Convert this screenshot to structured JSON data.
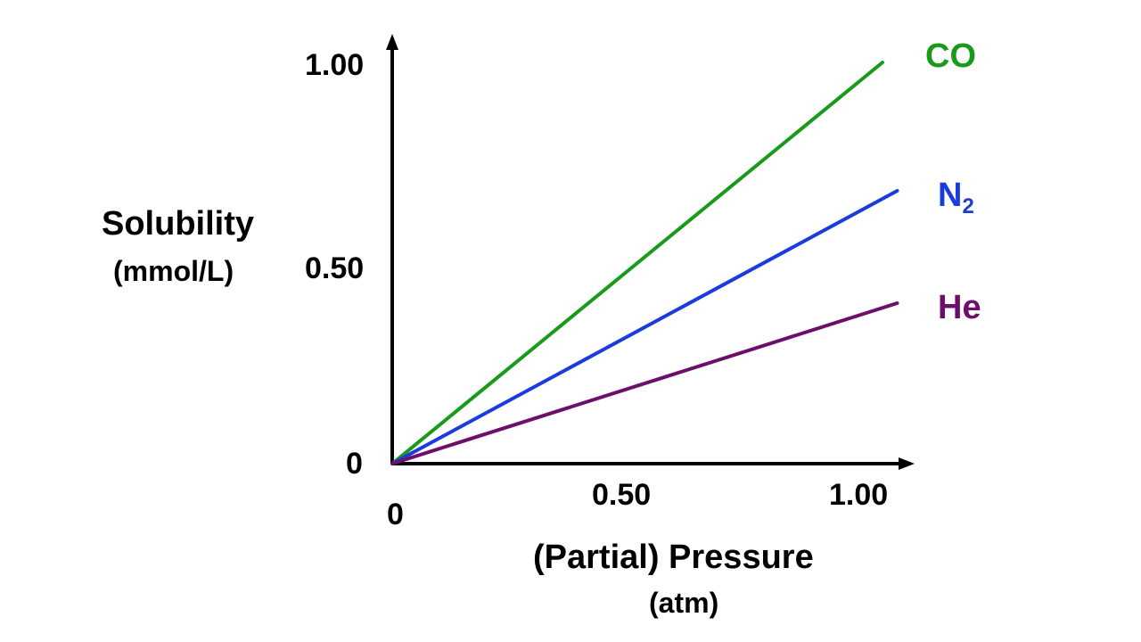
{
  "chart_data": {
    "type": "line",
    "title": "",
    "ylabel": "Solubility",
    "ylabel_unit": "(mmol/L)",
    "xlabel": "(Partial) Pressure",
    "xlabel_unit": "(atm)",
    "x_ticks": [
      "0.50",
      "1.00"
    ],
    "y_ticks": [
      "0",
      "0.50",
      "1.00"
    ],
    "x_origin_label": "0",
    "xlim": [
      0,
      1.05
    ],
    "ylim": [
      0,
      1.05
    ],
    "grid": false,
    "series": [
      {
        "name": "CO",
        "name_sub": "",
        "color": "#1a9a1a",
        "x": [
          0,
          1.0
        ],
        "y": [
          0,
          1.0
        ]
      },
      {
        "name": "N",
        "name_sub": "2",
        "color": "#1c3bde",
        "x": [
          0,
          1.03
        ],
        "y": [
          0,
          0.68
        ]
      },
      {
        "name": "He",
        "name_sub": "",
        "color": "#6b0f6b",
        "x": [
          0,
          1.03
        ],
        "y": [
          0,
          0.4
        ]
      }
    ]
  }
}
